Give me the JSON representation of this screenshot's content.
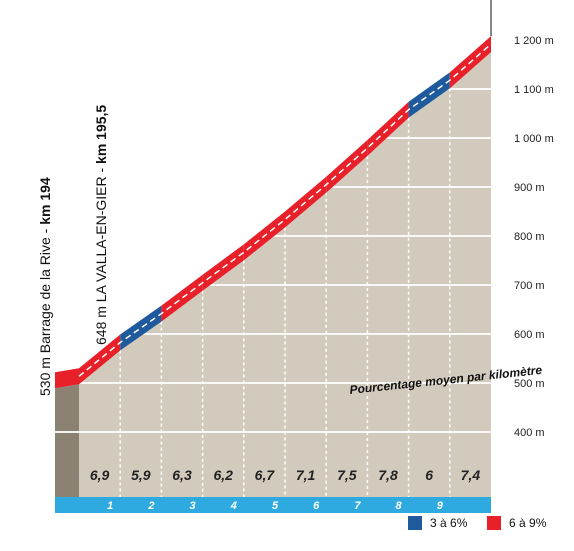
{
  "chart_data": {
    "type": "area",
    "x_unit": "km",
    "y_unit": "m",
    "yticks": [
      "400 m",
      "500 m",
      "600 m",
      "700 m",
      "800 m",
      "900 m",
      "1 000 m",
      "1 100 m",
      "1 200 m"
    ],
    "ytick_values": [
      400,
      500,
      600,
      700,
      800,
      900,
      1000,
      1100,
      1200
    ],
    "ylim": [
      370,
      1240
    ],
    "km_markers": [
      "1",
      "2",
      "3",
      "4",
      "5",
      "6",
      "7",
      "8",
      "9"
    ],
    "segments": [
      {
        "gradient": 6.9,
        "label": "6,9",
        "start_alt": 530,
        "end_alt": 599,
        "color_class": "red"
      },
      {
        "gradient": 5.9,
        "label": "5,9",
        "start_alt": 599,
        "end_alt": 658,
        "color_class": "blue"
      },
      {
        "gradient": 6.3,
        "label": "6,3",
        "start_alt": 658,
        "end_alt": 721,
        "color_class": "red"
      },
      {
        "gradient": 6.2,
        "label": "6,2",
        "start_alt": 721,
        "end_alt": 783,
        "color_class": "red"
      },
      {
        "gradient": 6.7,
        "label": "6,7",
        "start_alt": 783,
        "end_alt": 850,
        "color_class": "red"
      },
      {
        "gradient": 7.1,
        "label": "7,1",
        "start_alt": 850,
        "end_alt": 921,
        "color_class": "red"
      },
      {
        "gradient": 7.5,
        "label": "7,5",
        "start_alt": 921,
        "end_alt": 996,
        "color_class": "red"
      },
      {
        "gradient": 7.8,
        "label": "7,8",
        "start_alt": 996,
        "end_alt": 1074,
        "color_class": "red"
      },
      {
        "gradient": 6.0,
        "label": "6",
        "start_alt": 1074,
        "end_alt": 1134,
        "color_class": "blue"
      },
      {
        "gradient": 7.4,
        "label": "7,4",
        "start_alt": 1134,
        "end_alt": 1208,
        "color_class": "red"
      }
    ],
    "annotation": "Pourcentage moyen par kilomètre",
    "legend": [
      {
        "label": "3 à 6%",
        "color": "#1f5a9c"
      },
      {
        "label": "6 à 9%",
        "color": "#e8202a"
      }
    ],
    "colors": {
      "red": "#e8202a",
      "blue": "#1f5a9c",
      "terrain": "#d2cbbd",
      "base_block": "#8c8273",
      "base_strip": "#2eaae1",
      "grid": "#ffffff"
    },
    "landmarks": [
      {
        "alt_label": "530 m",
        "name": "Barrage de la Rive",
        "km_label": "km 194"
      },
      {
        "alt_label": "648 m",
        "name": "LA VALLA-EN-GIER",
        "km_label": "km 195,5"
      }
    ]
  }
}
